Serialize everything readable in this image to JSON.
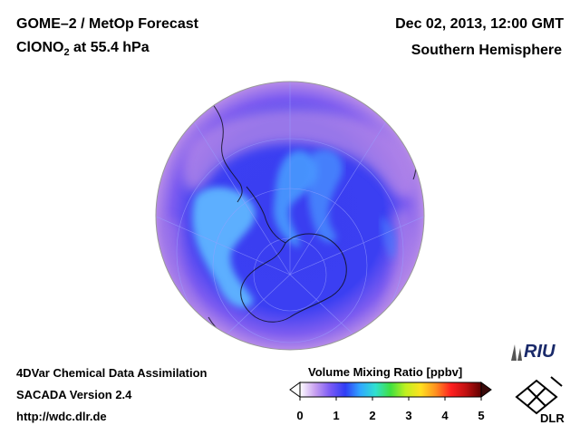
{
  "header": {
    "title_line1": "GOME–2 / MetOp Forecast",
    "species": "ClONO",
    "species_sub": "2",
    "species_rest": " at 55.4 hPa",
    "datetime": "Dec 02, 2013, 12:00 GMT",
    "region": "Southern Hemisphere"
  },
  "footer": {
    "line1": "4DVar Chemical Data Assimilation",
    "line2": "SACADA Version 2.4",
    "line3": "http://wdc.dlr.de"
  },
  "colorbar": {
    "title": "Volume Mixing Ratio [ppbv]",
    "ticks": [
      "0",
      "1",
      "2",
      "3",
      "4",
      "5"
    ],
    "min": 0,
    "max": 5,
    "colors": [
      "#ffffff",
      "#c8a0f0",
      "#7a5af5",
      "#2f3df5",
      "#30a8ff",
      "#30e0d0",
      "#40e040",
      "#c0f020",
      "#ffe020",
      "#ff9020",
      "#ff2020",
      "#c01010",
      "#600000"
    ]
  },
  "map": {
    "projection": "orthographic",
    "hemisphere": "south",
    "background_color": "#3a3ef0",
    "low_color": "#5fb6ff",
    "high_color": "#c38fe6"
  },
  "logos": {
    "riu": "RIU",
    "dlr": "DLR"
  }
}
